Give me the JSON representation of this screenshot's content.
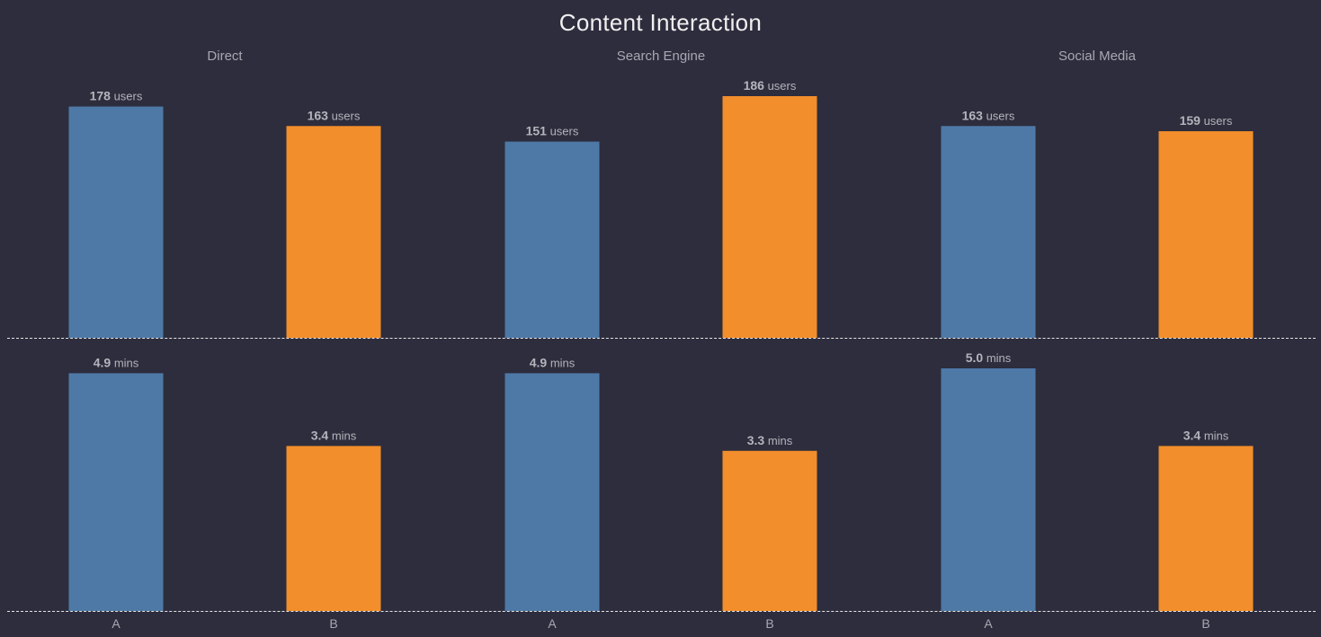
{
  "chart_data": {
    "type": "bar",
    "title": "Content Interaction",
    "groups": [
      "Direct",
      "Search Engine",
      "Social Media"
    ],
    "categories": [
      "A",
      "B"
    ],
    "colors": {
      "A": "#4e79a7",
      "B": "#f28e2b"
    },
    "panels": [
      {
        "unit": "users",
        "ylim": [
          0,
          186
        ],
        "values": [
          [
            178,
            163
          ],
          [
            151,
            186
          ],
          [
            163,
            159
          ]
        ],
        "labels": [
          [
            "178",
            "163"
          ],
          [
            "151",
            "186"
          ],
          [
            "163",
            "159"
          ]
        ]
      },
      {
        "unit": "mins",
        "ylim": [
          0,
          5.0
        ],
        "values": [
          [
            4.9,
            3.4
          ],
          [
            4.9,
            3.3
          ],
          [
            5.0,
            3.4
          ]
        ],
        "labels": [
          [
            "4.9",
            "3.4"
          ],
          [
            "4.9",
            "3.3"
          ],
          [
            "5.0",
            "3.4"
          ]
        ]
      }
    ]
  }
}
